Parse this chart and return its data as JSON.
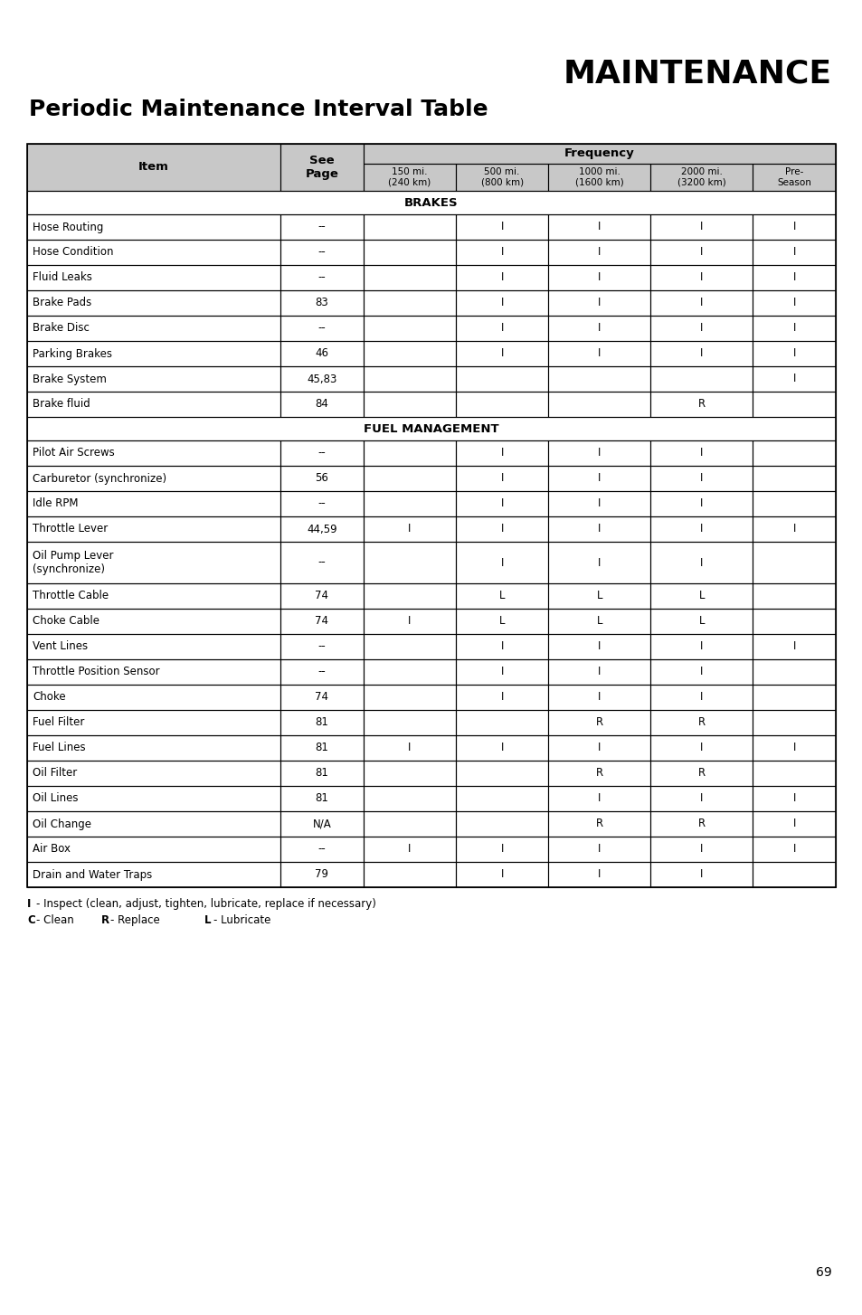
{
  "title_right": "MAINTENANCE",
  "title_left": "Periodic Maintenance Interval Table",
  "page_number": "69",
  "header_bg": "#c8c8c8",
  "section_bg": "#ffffff",
  "row_bg": "#ffffff",
  "col_widths_rel": [
    2.6,
    0.85,
    0.95,
    0.95,
    1.05,
    1.05,
    0.85
  ],
  "sections": [
    {
      "section_title": "BRAKES",
      "rows": [
        {
          "item": "Hose Routing",
          "page": "--",
          "c1": "",
          "c2": "I",
          "c3": "I",
          "c4": "I",
          "c5": "I"
        },
        {
          "item": "Hose Condition",
          "page": "--",
          "c1": "",
          "c2": "I",
          "c3": "I",
          "c4": "I",
          "c5": "I"
        },
        {
          "item": "Fluid Leaks",
          "page": "--",
          "c1": "",
          "c2": "I",
          "c3": "I",
          "c4": "I",
          "c5": "I"
        },
        {
          "item": "Brake Pads",
          "page": "83",
          "c1": "",
          "c2": "I",
          "c3": "I",
          "c4": "I",
          "c5": "I"
        },
        {
          "item": "Brake Disc",
          "page": "--",
          "c1": "",
          "c2": "I",
          "c3": "I",
          "c4": "I",
          "c5": "I"
        },
        {
          "item": "Parking Brakes",
          "page": "46",
          "c1": "",
          "c2": "I",
          "c3": "I",
          "c4": "I",
          "c5": "I"
        },
        {
          "item": "Brake System",
          "page": "45,83",
          "c1": "",
          "c2": "",
          "c3": "",
          "c4": "",
          "c5": "I"
        },
        {
          "item": "Brake fluid",
          "page": "84",
          "c1": "",
          "c2": "",
          "c3": "",
          "c4": "R",
          "c5": ""
        }
      ]
    },
    {
      "section_title": "FUEL MANAGEMENT",
      "rows": [
        {
          "item": "Pilot Air Screws",
          "page": "--",
          "c1": "",
          "c2": "I",
          "c3": "I",
          "c4": "I",
          "c5": ""
        },
        {
          "item": "Carburetor (synchronize)",
          "page": "56",
          "c1": "",
          "c2": "I",
          "c3": "I",
          "c4": "I",
          "c5": ""
        },
        {
          "item": "Idle RPM",
          "page": "--",
          "c1": "",
          "c2": "I",
          "c3": "I",
          "c4": "I",
          "c5": ""
        },
        {
          "item": "Throttle Lever",
          "page": "44,59",
          "c1": "I",
          "c2": "I",
          "c3": "I",
          "c4": "I",
          "c5": "I"
        },
        {
          "item": "Oil Pump Lever\n(synchronize)",
          "page": "--",
          "c1": "",
          "c2": "I",
          "c3": "I",
          "c4": "I",
          "c5": ""
        },
        {
          "item": "Throttle Cable",
          "page": "74",
          "c1": "",
          "c2": "L",
          "c3": "L",
          "c4": "L",
          "c5": ""
        },
        {
          "item": "Choke Cable",
          "page": "74",
          "c1": "I",
          "c2": "L",
          "c3": "L",
          "c4": "L",
          "c5": ""
        },
        {
          "item": "Vent Lines",
          "page": "--",
          "c1": "",
          "c2": "I",
          "c3": "I",
          "c4": "I",
          "c5": "I"
        },
        {
          "item": "Throttle Position Sensor",
          "page": "--",
          "c1": "",
          "c2": "I",
          "c3": "I",
          "c4": "I",
          "c5": ""
        },
        {
          "item": "Choke",
          "page": "74",
          "c1": "",
          "c2": "I",
          "c3": "I",
          "c4": "I",
          "c5": ""
        },
        {
          "item": "Fuel Filter",
          "page": "81",
          "c1": "",
          "c2": "",
          "c3": "R",
          "c4": "R",
          "c5": ""
        },
        {
          "item": "Fuel Lines",
          "page": "81",
          "c1": "I",
          "c2": "I",
          "c3": "I",
          "c4": "I",
          "c5": "I"
        },
        {
          "item": "Oil Filter",
          "page": "81",
          "c1": "",
          "c2": "",
          "c3": "R",
          "c4": "R",
          "c5": ""
        },
        {
          "item": "Oil Lines",
          "page": "81",
          "c1": "",
          "c2": "",
          "c3": "I",
          "c4": "I",
          "c5": "I"
        },
        {
          "item": "Oil Change",
          "page": "N/A",
          "c1": "",
          "c2": "",
          "c3": "R",
          "c4": "R",
          "c5": "I"
        },
        {
          "item": "Air Box",
          "page": "--",
          "c1": "I",
          "c2": "I",
          "c3": "I",
          "c4": "I",
          "c5": "I"
        },
        {
          "item": "Drain and Water Traps",
          "page": "79",
          "c1": "",
          "c2": "I",
          "c3": "I",
          "c4": "I",
          "c5": ""
        }
      ]
    }
  ],
  "bg_color": "#ffffff",
  "border_color": "#000000",
  "text_color": "#000000"
}
